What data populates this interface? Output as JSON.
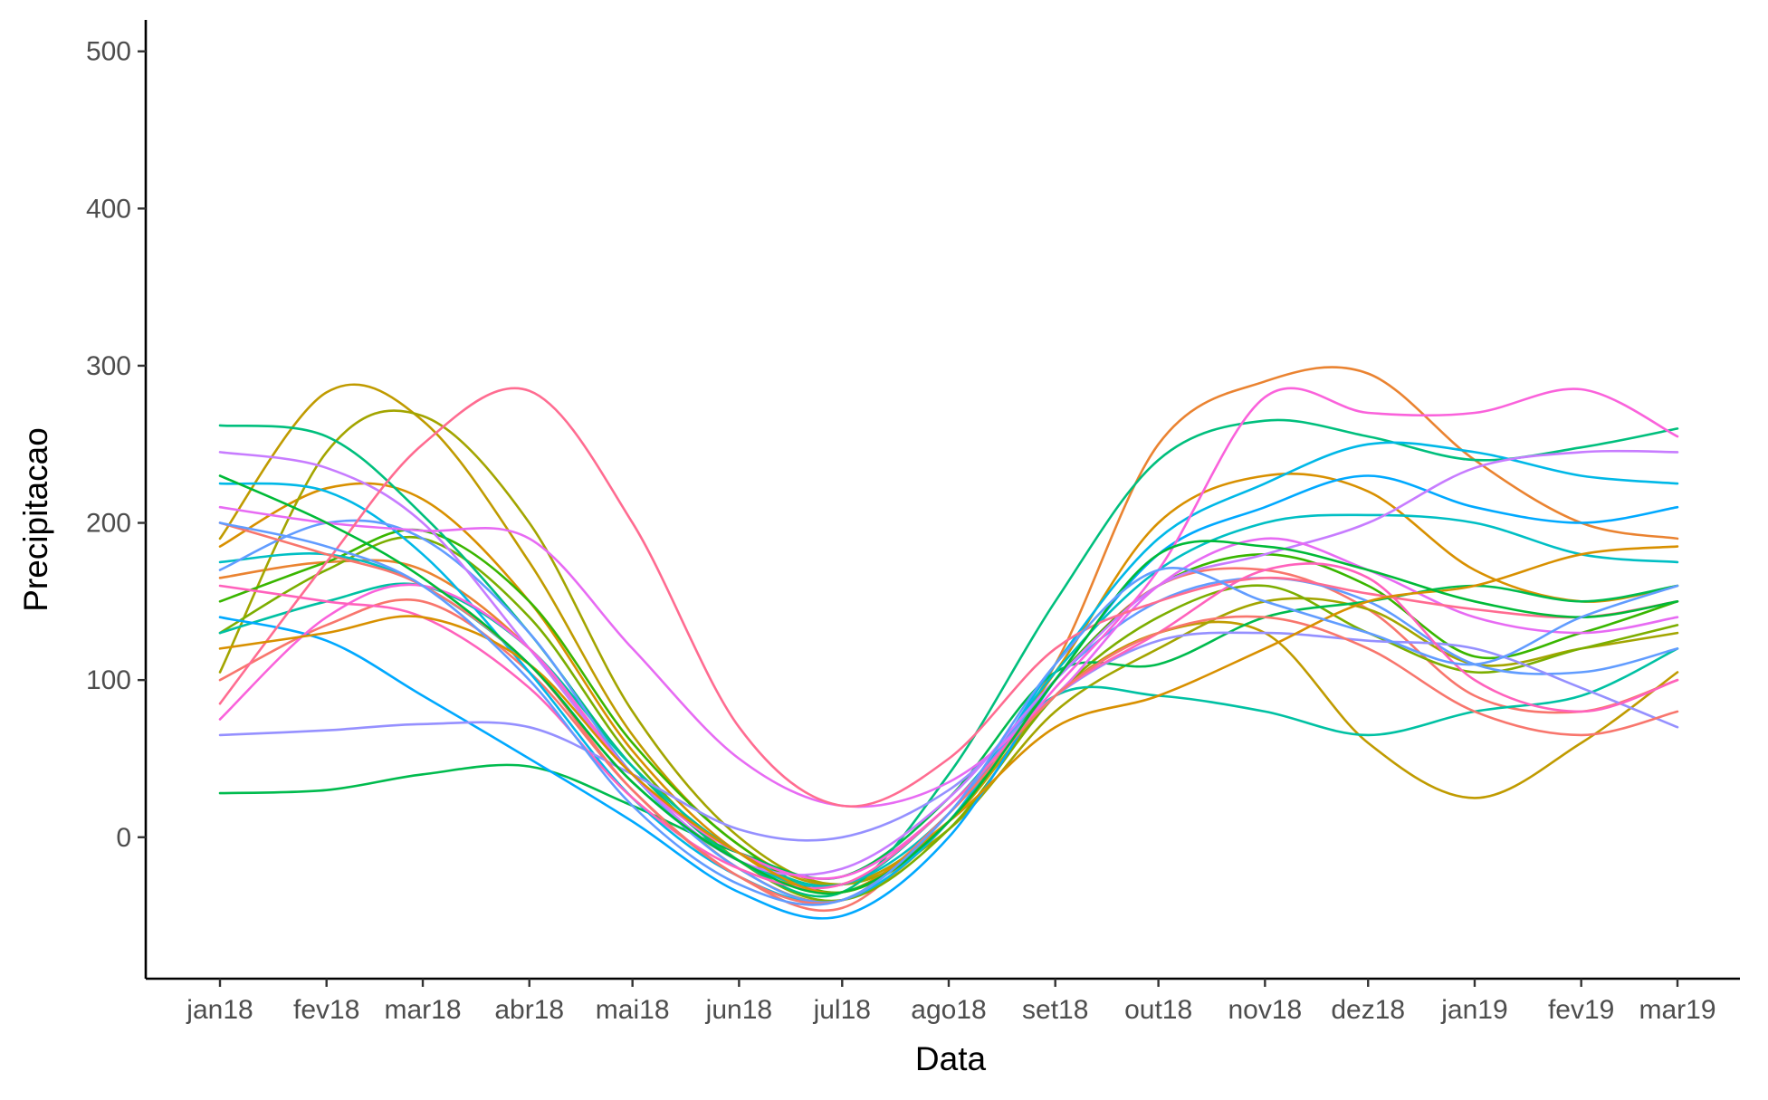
{
  "chart_data": {
    "type": "line",
    "title": "",
    "xlabel": "Data",
    "ylabel": "Precipitacao",
    "x": [
      "jan18",
      "fev18",
      "mar18",
      "abr18",
      "mai18",
      "jun18",
      "jul18",
      "ago18",
      "set18",
      "out18",
      "nov18",
      "dez18",
      "jan19",
      "fev19",
      "mar19"
    ],
    "x_days": [
      0,
      31,
      59,
      90,
      120,
      151,
      181,
      212,
      243,
      273,
      304,
      334,
      365,
      396,
      424
    ],
    "yticks": [
      0,
      100,
      200,
      300,
      400,
      500
    ],
    "ylim": [
      -90,
      520
    ],
    "grid": false,
    "legend": "none",
    "series": [
      {
        "color": "#F8766D",
        "values": [
          100,
          135,
          150,
          105,
          30,
          -25,
          -45,
          15,
          100,
          160,
          170,
          145,
          90,
          80,
          100
        ]
      },
      {
        "color": "#EA8331",
        "values": [
          165,
          175,
          170,
          120,
          40,
          -20,
          -40,
          10,
          110,
          250,
          290,
          295,
          240,
          200,
          190
        ]
      },
      {
        "color": "#D89000",
        "values": [
          185,
          222,
          215,
          150,
          55,
          -10,
          -35,
          15,
          105,
          200,
          230,
          220,
          170,
          150,
          160
        ]
      },
      {
        "color": "#C09B00",
        "values": [
          190,
          283,
          265,
          175,
          65,
          -5,
          -30,
          10,
          90,
          130,
          130,
          60,
          25,
          60,
          105
        ]
      },
      {
        "color": "#A3A500",
        "values": [
          105,
          245,
          268,
          200,
          80,
          0,
          -30,
          5,
          80,
          120,
          150,
          145,
          110,
          120,
          130
        ]
      },
      {
        "color": "#7CAE00",
        "values": [
          130,
          170,
          190,
          140,
          50,
          -15,
          -40,
          5,
          90,
          140,
          160,
          130,
          105,
          120,
          135
        ]
      },
      {
        "color": "#39B600",
        "values": [
          150,
          175,
          195,
          150,
          60,
          -5,
          -35,
          10,
          100,
          160,
          180,
          160,
          115,
          130,
          150
        ]
      },
      {
        "color": "#00BB4E",
        "values": [
          28,
          30,
          40,
          45,
          20,
          -10,
          -25,
          25,
          105,
          110,
          140,
          150,
          160,
          150,
          160
        ]
      },
      {
        "color": "#00BF7D",
        "values": [
          262,
          255,
          205,
          130,
          45,
          -15,
          -35,
          40,
          150,
          240,
          265,
          255,
          240,
          248,
          260
        ]
      },
      {
        "color": "#00C1A3",
        "values": [
          130,
          150,
          160,
          120,
          45,
          -10,
          -30,
          20,
          90,
          90,
          80,
          65,
          80,
          90,
          120
        ]
      },
      {
        "color": "#00BFC4",
        "values": [
          175,
          180,
          160,
          110,
          35,
          -15,
          -30,
          15,
          105,
          170,
          200,
          205,
          200,
          180,
          175
        ]
      },
      {
        "color": "#00B8E7",
        "values": [
          225,
          220,
          180,
          105,
          25,
          -25,
          -40,
          10,
          110,
          190,
          225,
          250,
          245,
          230,
          225
        ]
      },
      {
        "color": "#00A9FF",
        "values": [
          140,
          125,
          90,
          50,
          10,
          -35,
          -50,
          0,
          100,
          180,
          210,
          230,
          210,
          200,
          210
        ]
      },
      {
        "color": "#619CFF",
        "values": [
          170,
          200,
          190,
          130,
          40,
          -20,
          -40,
          15,
          100,
          150,
          165,
          150,
          110,
          105,
          120
        ]
      },
      {
        "color": "#9590FF",
        "values": [
          65,
          68,
          72,
          70,
          40,
          5,
          0,
          30,
          90,
          125,
          130,
          125,
          120,
          95,
          70
        ]
      },
      {
        "color": "#C77CFF",
        "values": [
          245,
          235,
          200,
          120,
          40,
          -15,
          -20,
          25,
          100,
          160,
          180,
          200,
          235,
          245,
          245
        ]
      },
      {
        "color": "#E76BF3",
        "values": [
          210,
          200,
          195,
          190,
          120,
          50,
          20,
          35,
          90,
          160,
          190,
          170,
          140,
          130,
          140
        ]
      },
      {
        "color": "#FA62DB",
        "values": [
          75,
          140,
          160,
          120,
          40,
          -10,
          -25,
          20,
          95,
          170,
          280,
          270,
          270,
          285,
          255
        ]
      },
      {
        "color": "#FF62BC",
        "values": [
          160,
          150,
          140,
          95,
          25,
          -20,
          -30,
          20,
          90,
          130,
          170,
          165,
          100,
          80,
          100
        ]
      },
      {
        "color": "#FF6C91",
        "values": [
          85,
          175,
          250,
          284,
          200,
          70,
          20,
          50,
          120,
          150,
          165,
          155,
          145,
          140,
          150
        ]
      },
      {
        "color": "#F8766D",
        "values": [
          200,
          180,
          160,
          110,
          30,
          -25,
          -40,
          15,
          90,
          130,
          140,
          120,
          80,
          65,
          80
        ]
      },
      {
        "color": "#D89000",
        "values": [
          120,
          130,
          140,
          110,
          40,
          -10,
          -35,
          10,
          70,
          90,
          120,
          150,
          160,
          180,
          185
        ]
      },
      {
        "color": "#00BA38",
        "values": [
          230,
          200,
          165,
          110,
          35,
          -15,
          -35,
          10,
          100,
          180,
          185,
          170,
          150,
          140,
          150
        ]
      },
      {
        "color": "#619CFF",
        "values": [
          200,
          185,
          160,
          100,
          20,
          -30,
          -40,
          15,
          110,
          170,
          150,
          130,
          110,
          140,
          160
        ]
      }
    ]
  }
}
